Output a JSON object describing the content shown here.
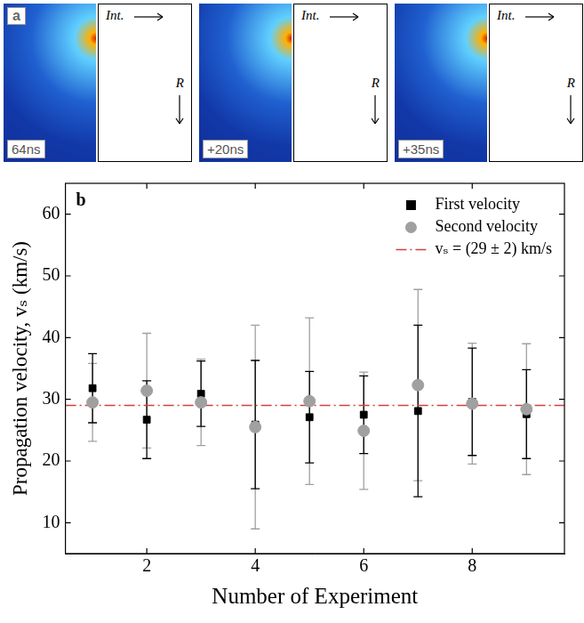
{
  "panel_a": {
    "label": "a",
    "frames": [
      "64ns",
      "+20ns",
      "+35ns"
    ],
    "x_label": "Int.",
    "y_label": "R"
  },
  "chart_data": {
    "type": "scatter",
    "label": "b",
    "x_label": "Number of Experiment",
    "y_label": "Propagation velocity, vₛ (km/s)",
    "x": [
      1,
      2,
      3,
      4,
      5,
      6,
      7,
      8,
      9
    ],
    "series": [
      {
        "name": "First velocity",
        "color": "#000000",
        "marker": "square",
        "values": [
          31.8,
          26.7,
          30.9,
          25.9,
          27.1,
          27.5,
          28.1,
          29.6,
          27.6
        ],
        "errors": [
          5.6,
          6.3,
          5.3,
          10.4,
          7.4,
          6.3,
          13.9,
          8.7,
          7.2
        ]
      },
      {
        "name": "Second velocity",
        "color": "#a0a0a0",
        "marker": "circle",
        "values": [
          29.5,
          31.4,
          29.5,
          25.5,
          29.7,
          24.9,
          32.3,
          29.3,
          28.4
        ],
        "errors": [
          6.3,
          9.3,
          7.0,
          16.5,
          13.5,
          9.5,
          15.5,
          9.8,
          10.6
        ]
      }
    ],
    "reference_line": {
      "name": "vₛ = (29 ± 2) km/s",
      "value": 29,
      "color": "#d04040",
      "line_style": "dashdot"
    },
    "xlim": [
      0.5,
      9.7
    ],
    "xticks": [
      2,
      4,
      6,
      8
    ],
    "ylim": [
      5,
      65
    ],
    "yticks": [
      10,
      20,
      30,
      40,
      50,
      60
    ],
    "grid": false,
    "legend": "upper right"
  }
}
